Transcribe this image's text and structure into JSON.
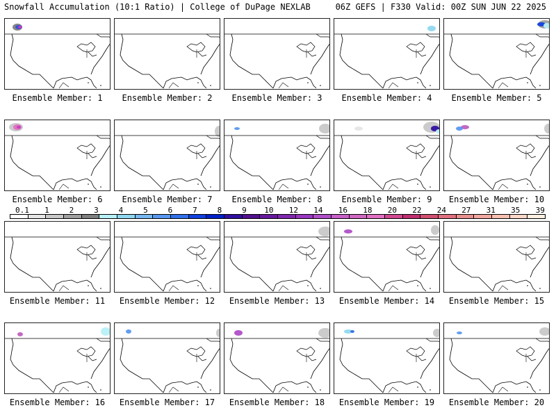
{
  "header": {
    "left_title": "Snowfall Accumulation (10:1 Ratio) | College of DuPage NEXLAB",
    "right_title": "06Z GEFS | F330 Valid: 00Z SUN JUN 22 2025"
  },
  "panels": [
    {
      "label": "Ensemble Member: 1"
    },
    {
      "label": "Ensemble Member: 2"
    },
    {
      "label": "Ensemble Member: 3"
    },
    {
      "label": "Ensemble Member: 4"
    },
    {
      "label": "Ensemble Member: 5"
    },
    {
      "label": "Ensemble Member: 6"
    },
    {
      "label": "Ensemble Member: 7"
    },
    {
      "label": "Ensemble Member: 8"
    },
    {
      "label": "Ensemble Member: 9"
    },
    {
      "label": "Ensemble Member: 10"
    },
    {
      "label": "Ensemble Member: 11"
    },
    {
      "label": "Ensemble Member: 12"
    },
    {
      "label": "Ensemble Member: 13"
    },
    {
      "label": "Ensemble Member: 14"
    },
    {
      "label": "Ensemble Member: 15"
    },
    {
      "label": "Ensemble Member: 16"
    },
    {
      "label": "Ensemble Member: 17"
    },
    {
      "label": "Ensemble Member: 18"
    },
    {
      "label": "Ensemble Member: 19"
    },
    {
      "label": "Ensemble Member: 20"
    }
  ],
  "colorbar": {
    "tick_labels": [
      "0.1",
      "1",
      "2",
      "3",
      "4",
      "5",
      "6",
      "7",
      "8",
      "9",
      "10",
      "12",
      "14",
      "16",
      "18",
      "20",
      "22",
      "24",
      "27",
      "31",
      "35",
      "39"
    ],
    "colors": [
      "#ffffff",
      "#e6e6e6",
      "#c8c8c8",
      "#a0a0a0",
      "#808080",
      "#b8f0f8",
      "#90d8f0",
      "#78b8f0",
      "#5898f0",
      "#3070e8",
      "#1040e0",
      "#0020c8",
      "#3010a0",
      "#501090",
      "#6818a0",
      "#8028b0",
      "#9838c0",
      "#b050c8",
      "#c860c8",
      "#d068c0",
      "#e070c0",
      "#d04890",
      "#c03070",
      "#d05070",
      "#e07080",
      "#e89090",
      "#f0a8a0",
      "#f8c0b0",
      "#fcd8c8",
      "#fff0e0"
    ]
  }
}
